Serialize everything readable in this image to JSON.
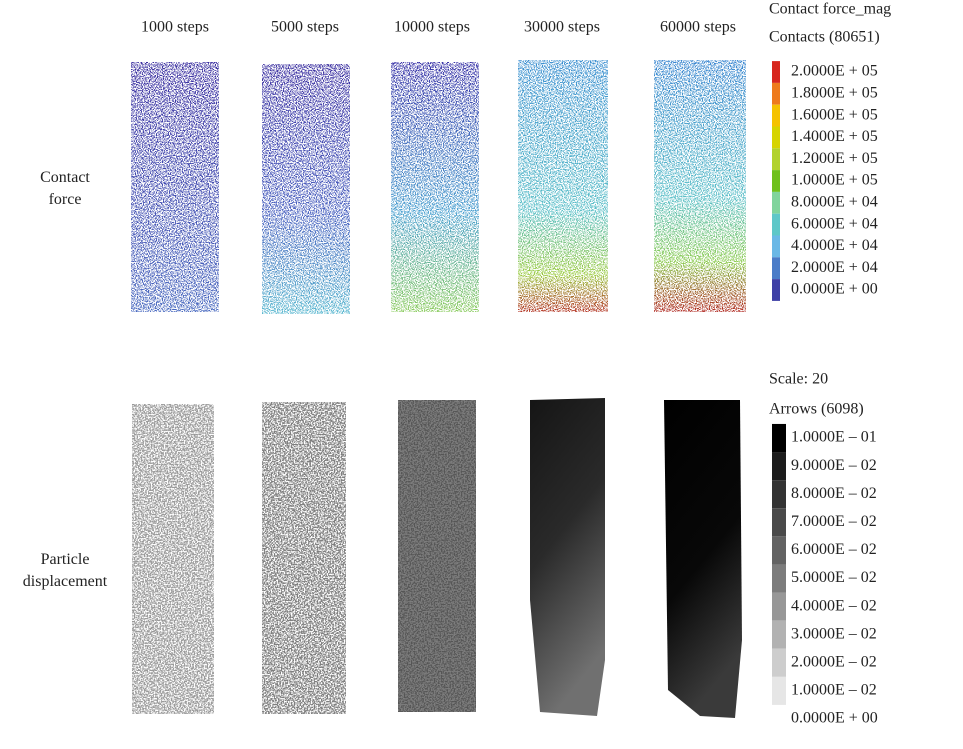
{
  "columns": [
    "1000 steps",
    "5000 steps",
    "10000 steps",
    "30000 steps",
    "60000 steps"
  ],
  "rows": [
    "Contact force",
    "Particle displacement"
  ],
  "legends": [
    {
      "title": "Contact force_mag",
      "subtitle": "Contacts (80651)",
      "entries": [
        {
          "label": "2.0000E + 05",
          "color": "#d7261e"
        },
        {
          "label": "1.8000E + 05",
          "color": "#ee7a1c"
        },
        {
          "label": "1.6000E + 05",
          "color": "#f5c200"
        },
        {
          "label": "1.4000E + 05",
          "color": "#d6d400"
        },
        {
          "label": "1.2000E + 05",
          "color": "#b2d22c"
        },
        {
          "label": "1.0000E + 05",
          "color": "#6ec01c"
        },
        {
          "label": "8.0000E + 04",
          "color": "#80d49c"
        },
        {
          "label": "6.0000E + 04",
          "color": "#5ec7c8"
        },
        {
          "label": "4.0000E + 04",
          "color": "#6ab8e6"
        },
        {
          "label": "2.0000E + 04",
          "color": "#4a7cc8"
        },
        {
          "label": "0.0000E + 00",
          "color": "#3e40a6"
        }
      ]
    },
    {
      "title": "Scale: 20",
      "subtitle": "Arrows (6098)",
      "entries": [
        {
          "label": "1.0000E – 01",
          "color": "#000000"
        },
        {
          "label": "9.0000E – 02",
          "color": "#1c1c1c"
        },
        {
          "label": "8.0000E – 02",
          "color": "#333333"
        },
        {
          "label": "7.0000E – 02",
          "color": "#4a4a4a"
        },
        {
          "label": "6.0000E – 02",
          "color": "#636363"
        },
        {
          "label": "5.0000E – 02",
          "color": "#7c7c7c"
        },
        {
          "label": "4.0000E – 02",
          "color": "#979797"
        },
        {
          "label": "3.0000E – 02",
          "color": "#b2b2b2"
        },
        {
          "label": "2.0000E – 02",
          "color": "#cdcdcd"
        },
        {
          "label": "1.0000E – 02",
          "color": "#e6e6e6"
        },
        {
          "label": "0.0000E + 00",
          "color": "#ffffff"
        }
      ]
    }
  ]
}
